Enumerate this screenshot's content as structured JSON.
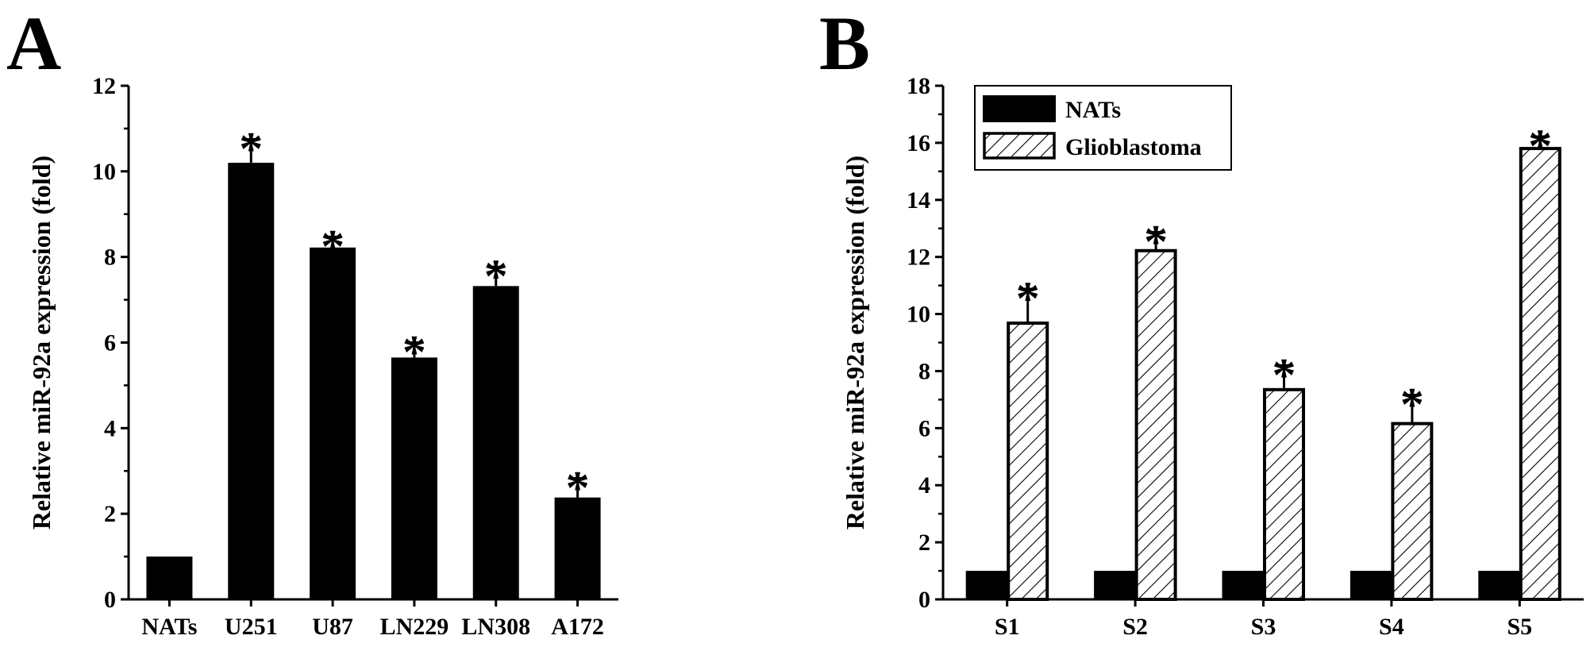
{
  "chart_data": [
    {
      "type": "bar",
      "panel_label": "A",
      "categories": [
        "NATs",
        "U251",
        "U87",
        "LN229",
        "LN308",
        "A172"
      ],
      "series": [
        {
          "values": [
            1.0,
            10.2,
            8.22,
            5.65,
            7.32,
            2.38
          ],
          "errors": [
            0,
            0.55,
            0.25,
            0.35,
            0.45,
            0.45
          ]
        }
      ],
      "significance": [
        "",
        "*",
        "*",
        "*",
        "*",
        "*"
      ],
      "ylabel": "Relative miR-92a expression (fold)",
      "xlabel": "",
      "ylim": [
        0,
        12
      ],
      "yticks": [
        0,
        2,
        4,
        6,
        8,
        10,
        12
      ],
      "bar_color": "#000000",
      "grid": false
    },
    {
      "type": "bar",
      "panel_label": "B",
      "categories": [
        "S1",
        "S2",
        "S3",
        "S4",
        "S5"
      ],
      "series": [
        {
          "name": "NATs",
          "values": [
            1.0,
            1.0,
            1.0,
            1.0,
            1.0
          ],
          "errors": [
            0,
            0,
            0,
            0,
            0
          ],
          "fill": "solid",
          "color": "#000000"
        },
        {
          "name": "Glioblastoma",
          "values": [
            9.68,
            12.22,
            7.35,
            6.16,
            15.8
          ],
          "errors": [
            1.2,
            0.65,
            0.85,
            1.0,
            0.42
          ],
          "fill": "hatched",
          "color": "#000000"
        }
      ],
      "significance": [
        "*",
        "*",
        "*",
        "*",
        "*"
      ],
      "ylabel": "Relative miR-92a expression (fold)",
      "xlabel": "",
      "ylim": [
        0,
        18
      ],
      "yticks": [
        0,
        2,
        4,
        6,
        8,
        10,
        12,
        14,
        16,
        18
      ],
      "legend_position": "top-left",
      "grid": false
    }
  ]
}
